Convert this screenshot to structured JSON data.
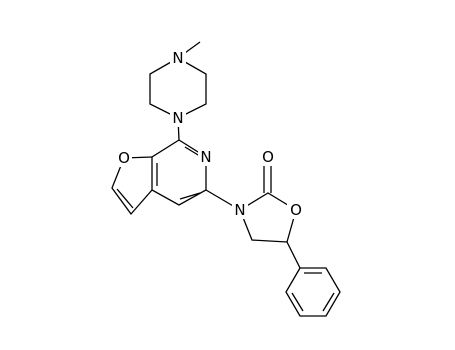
{
  "atoms": [
    {
      "label": "N"
    },
    {
      "label": "N"
    },
    {
      "label": "N"
    },
    {
      "label": "O"
    },
    {
      "label": "N"
    },
    {
      "label": "O"
    },
    {
      "label": "O"
    }
  ]
}
